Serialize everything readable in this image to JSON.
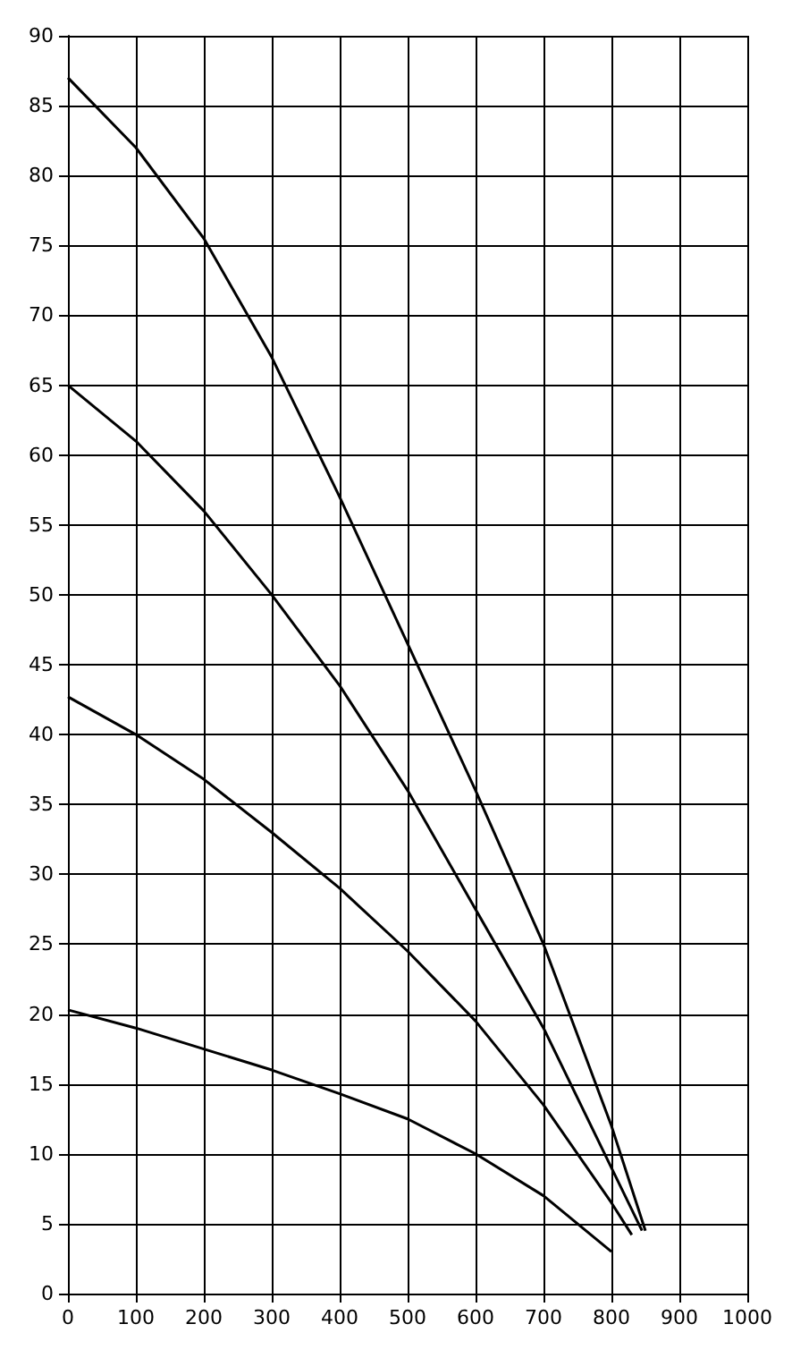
{
  "chart_data": {
    "type": "line",
    "xlim": [
      0,
      1000
    ],
    "xticks": [
      0,
      100,
      200,
      300,
      400,
      500,
      600,
      700,
      800,
      900,
      1000
    ],
    "ylim": [
      0,
      90
    ],
    "yticks": [
      0,
      5,
      10,
      15,
      20,
      25,
      30,
      35,
      40,
      45,
      50,
      55,
      60,
      65,
      70,
      75,
      80,
      85,
      90
    ],
    "grid": true,
    "marker": "none",
    "line_style": "solid",
    "series": [
      {
        "color": "#000000",
        "x": [
          0,
          100,
          200,
          300,
          400,
          500,
          600,
          700,
          800,
          850
        ],
        "values": [
          87,
          82,
          75.5,
          67,
          57,
          46.5,
          36,
          25,
          12,
          4.5
        ]
      },
      {
        "color": "#000000",
        "x": [
          0,
          100,
          200,
          300,
          400,
          500,
          600,
          700,
          800,
          845
        ],
        "values": [
          65,
          61,
          56,
          50,
          43.5,
          36,
          27.5,
          19,
          9,
          4.5
        ]
      },
      {
        "color": "#000000",
        "x": [
          0,
          100,
          200,
          300,
          400,
          500,
          600,
          700,
          800,
          830
        ],
        "values": [
          42.7,
          40,
          36.8,
          33,
          29,
          24.5,
          19.5,
          13.5,
          6.5,
          4.2
        ]
      },
      {
        "color": "#000000",
        "x": [
          0,
          100,
          200,
          300,
          400,
          500,
          600,
          700,
          800
        ],
        "values": [
          20.3,
          19,
          17.5,
          16,
          14.3,
          12.5,
          10,
          7,
          3
        ]
      }
    ]
  }
}
